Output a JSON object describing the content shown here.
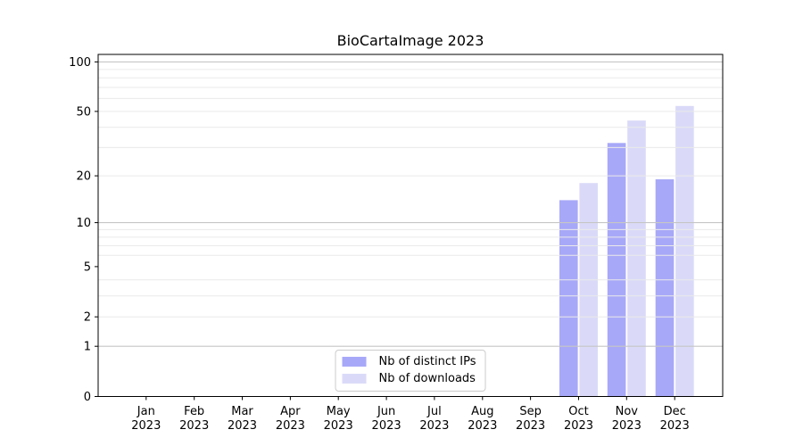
{
  "chart_data": {
    "type": "bar",
    "title": "BioCartaImage 2023",
    "categories": [
      {
        "month": "Jan",
        "year": "2023"
      },
      {
        "month": "Feb",
        "year": "2023"
      },
      {
        "month": "Mar",
        "year": "2023"
      },
      {
        "month": "Apr",
        "year": "2023"
      },
      {
        "month": "May",
        "year": "2023"
      },
      {
        "month": "Jun",
        "year": "2023"
      },
      {
        "month": "Jul",
        "year": "2023"
      },
      {
        "month": "Aug",
        "year": "2023"
      },
      {
        "month": "Sep",
        "year": "2023"
      },
      {
        "month": "Oct",
        "year": "2023"
      },
      {
        "month": "Nov",
        "year": "2023"
      },
      {
        "month": "Dec",
        "year": "2023"
      }
    ],
    "series": [
      {
        "name": "Nb of distinct IPs",
        "color": "#a8a8f8",
        "values": [
          null,
          null,
          null,
          null,
          null,
          null,
          null,
          null,
          null,
          14,
          32,
          19
        ]
      },
      {
        "name": "Nb of downloads",
        "color": "#dadaf8",
        "values": [
          null,
          null,
          null,
          null,
          null,
          null,
          null,
          null,
          null,
          18,
          44,
          54
        ]
      }
    ],
    "yscale": "log1p",
    "ylim": [
      0,
      111
    ],
    "yticks": [
      0,
      1,
      2,
      5,
      10,
      20,
      50,
      100
    ],
    "grid_major": [
      1,
      10,
      100
    ],
    "grid_minor": [
      2,
      3,
      4,
      6,
      7,
      8,
      9,
      20,
      30,
      40,
      50,
      60,
      70,
      80,
      90
    ],
    "grid_major_color": "#c6c6c6",
    "grid_minor_color": "#eaeaea",
    "axis_color": "#000000",
    "tick_label_color": "#000000",
    "legend_position": "lower center",
    "xlabel": "",
    "ylabel": ""
  }
}
